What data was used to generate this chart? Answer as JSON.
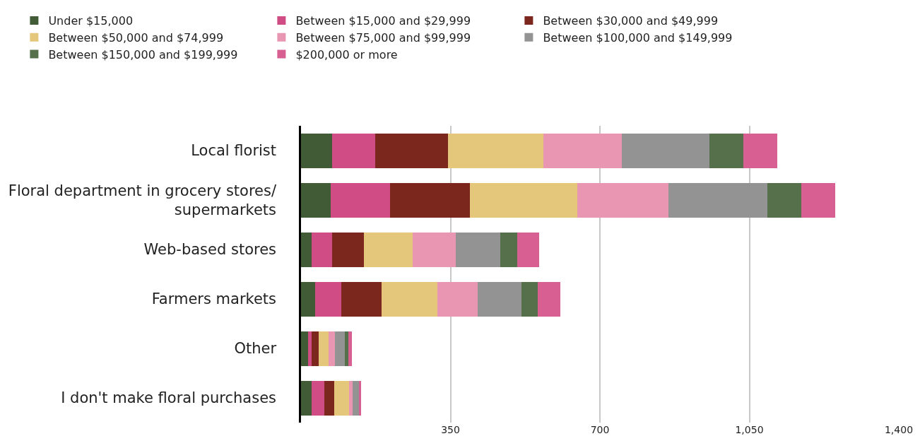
{
  "chart_data": {
    "type": "bar",
    "orientation": "horizontal",
    "stacked": true,
    "categories": [
      "Local florist",
      "Floral department in grocery stores/supermarkets",
      "Web-based stores",
      "Farmers markets",
      "Other",
      "I don't make floral purchases"
    ],
    "series": [
      {
        "name": "Under $15,000",
        "color": "#425b37",
        "values": [
          73,
          69,
          25,
          33,
          17,
          25
        ]
      },
      {
        "name": "Between $15,000 and $29,999",
        "color": "#cf4c84",
        "values": [
          100,
          140,
          48,
          61,
          8,
          30
        ]
      },
      {
        "name": "Between $30,000 and $49,999",
        "color": "#7b271d",
        "values": [
          172,
          187,
          74,
          94,
          16,
          23
        ]
      },
      {
        "name": "Between $50,000 and $74,999",
        "color": "#e4c77a",
        "values": [
          223,
          251,
          115,
          131,
          23,
          35
        ]
      },
      {
        "name": "Between $75,000 and $99,999",
        "color": "#e996b2",
        "values": [
          184,
          213,
          100,
          95,
          16,
          8
        ]
      },
      {
        "name": "Between $100,000 and $149,999",
        "color": "#939393",
        "values": [
          205,
          233,
          105,
          102,
          23,
          15
        ]
      },
      {
        "name": "Between $150,000 and $199,999",
        "color": "#56704c",
        "values": [
          79,
          79,
          39,
          39,
          8,
          0
        ]
      },
      {
        "name": "$200,000 or more",
        "color": "#d85f91",
        "values": [
          79,
          79,
          52,
          53,
          8,
          5
        ]
      }
    ],
    "xlim": [
      0,
      1400
    ],
    "xticks": [
      {
        "value": 0,
        "label": null
      },
      350,
      700,
      {
        "value": 1050,
        "label": "1,050"
      },
      {
        "value": 1400,
        "label": "1,400"
      }
    ],
    "grid": "x",
    "legend": "top"
  }
}
